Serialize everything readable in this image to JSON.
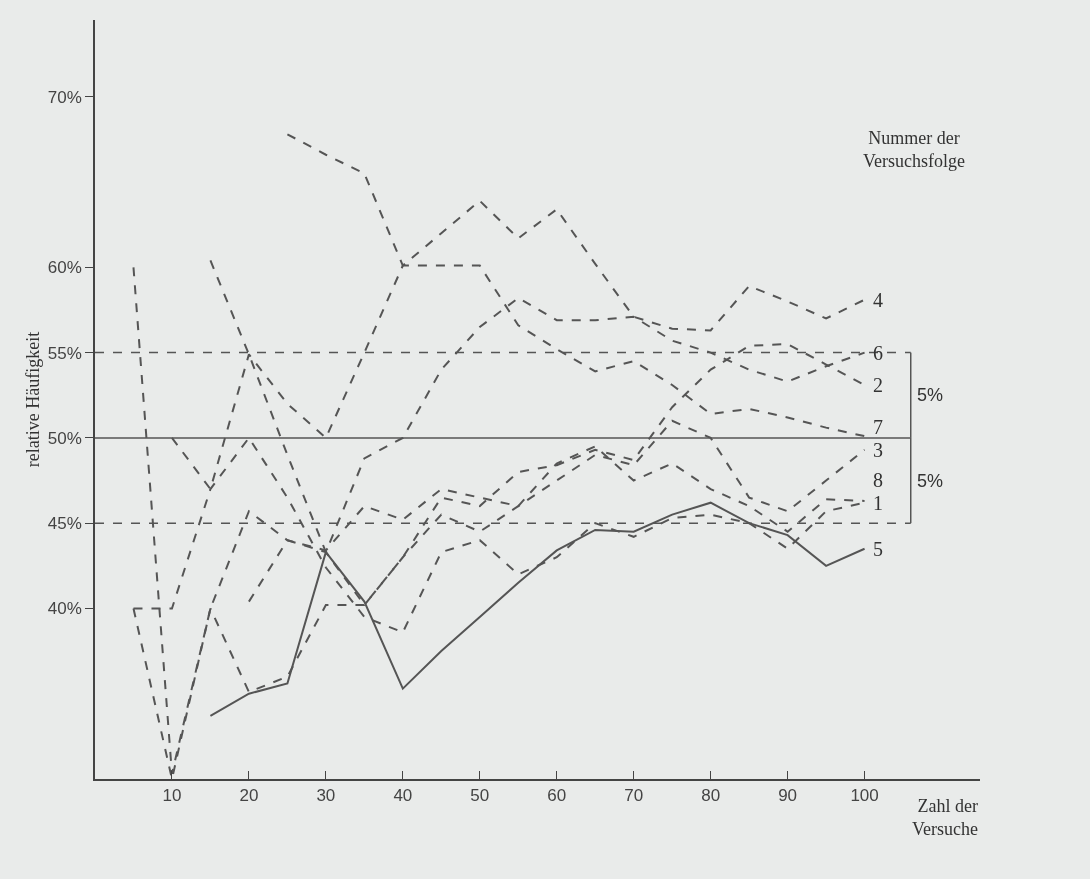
{
  "chart_data": {
    "type": "line",
    "xlabel": "Zahl der Versuche",
    "ylabel": "relative Häufigkeit",
    "legend_title": "Nummer der Versuchsfolge",
    "x": [
      5,
      10,
      15,
      20,
      25,
      30,
      35,
      40,
      45,
      50,
      55,
      60,
      65,
      70,
      75,
      80,
      85,
      90,
      95,
      100
    ],
    "xlim": [
      0,
      115
    ],
    "xticks": [
      10,
      20,
      30,
      40,
      50,
      60,
      70,
      80,
      90,
      100
    ],
    "ylim": [
      30,
      74.5
    ],
    "yticks": [
      {
        "value": 40,
        "label": "40%"
      },
      {
        "value": 45,
        "label": "45%"
      },
      {
        "value": 50,
        "label": "50%"
      },
      {
        "value": 55,
        "label": "55%"
      },
      {
        "value": 60,
        "label": "60%"
      },
      {
        "value": 70,
        "label": "70%"
      }
    ],
    "grid": false,
    "legend": false,
    "marker": "none",
    "series": [
      {
        "name": "1",
        "color": "#555555",
        "line_style": "dashed",
        "values": [
          40,
          40,
          47,
          50,
          46.5,
          42.4,
          39.5,
          38.6,
          43.3,
          44,
          42,
          43,
          45,
          44.2,
          45.3,
          45.5,
          45,
          43.5,
          45.7,
          46.2
        ]
      },
      {
        "name": "2",
        "color": "#555555",
        "line_style": "dashed",
        "values": [
          40,
          30,
          40,
          35.1,
          36,
          40.2,
          40.2,
          43,
          46.5,
          46,
          48,
          48.4,
          49.3,
          48.7,
          51.8,
          54,
          55.4,
          55.5,
          54.3,
          53.1
        ]
      },
      {
        "name": "3",
        "color": "#555555",
        "line_style": "dashed",
        "values": [
          null,
          null,
          null,
          40.4,
          44,
          43.3,
          40.2,
          43,
          45.5,
          44.5,
          46,
          47.5,
          49,
          48.4,
          51,
          50,
          46.5,
          45.7,
          47.5,
          49.3
        ]
      },
      {
        "name": "4",
        "color": "#555555",
        "line_style": "dashed",
        "values": [
          null,
          null,
          null,
          null,
          67.8,
          66.6,
          65.5,
          60.1,
          62,
          63.9,
          61.7,
          63.4,
          60.2,
          57.1,
          56.4,
          56.3,
          58.9,
          58,
          57,
          58.1
        ]
      },
      {
        "name": "5",
        "color": "#555555",
        "line_style": "solid",
        "values": [
          null,
          null,
          33.7,
          35,
          35.6,
          43.3,
          40.4,
          35.3,
          37.5,
          39.5,
          41.5,
          43.4,
          44.6,
          44.5,
          45.5,
          46.2,
          45,
          44.3,
          42.5,
          43.5
        ]
      },
      {
        "name": "6",
        "color": "#555555",
        "line_style": "dashed",
        "values": [
          null,
          null,
          60.4,
          54.9,
          49,
          43.3,
          48.8,
          50,
          54,
          56.5,
          58.2,
          56.9,
          56.9,
          57.1,
          55.7,
          55,
          54,
          53.3,
          54.2,
          55
        ]
      },
      {
        "name": "7",
        "color": "#555555",
        "line_style": "dashed",
        "values": [
          null,
          50,
          47,
          54.9,
          52,
          50,
          55,
          60.1,
          60.1,
          60.1,
          56.6,
          55.2,
          53.9,
          54.5,
          53.1,
          51.4,
          51.7,
          51.2,
          50.6,
          50.1
        ]
      },
      {
        "name": "8",
        "color": "#555555",
        "line_style": "dashed",
        "values": [
          60,
          30.3,
          40,
          45.7,
          44,
          43.4,
          46,
          45.2,
          47,
          46.5,
          46,
          48.5,
          49.5,
          47.5,
          48.5,
          47,
          46,
          44.5,
          46.4,
          46.3
        ]
      }
    ],
    "ref_lines": [
      {
        "axis": "y",
        "value": 55,
        "line_style": "dashed",
        "color": "#555555"
      },
      {
        "axis": "y",
        "value": 50,
        "line_style": "solid",
        "color": "#555555"
      },
      {
        "axis": "y",
        "value": 45,
        "line_style": "dashed",
        "color": "#555555"
      }
    ],
    "annotations": [
      "5%",
      "5%"
    ]
  }
}
